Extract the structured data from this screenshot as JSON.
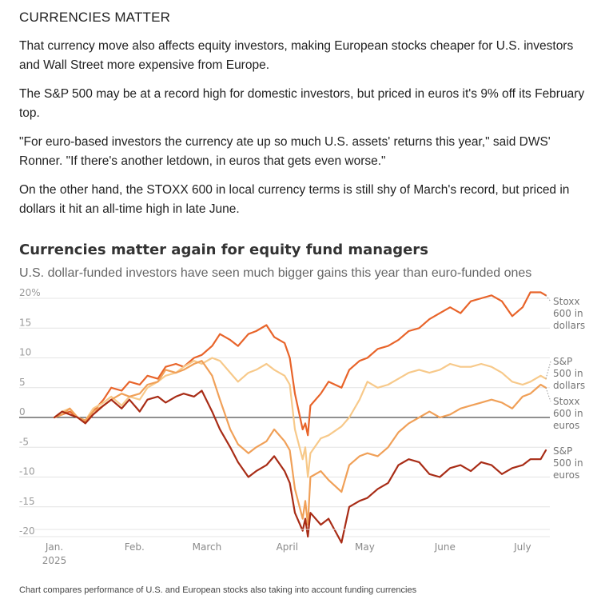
{
  "article": {
    "heading": "CURRENCIES MATTER",
    "paragraphs": [
      "That currency move also affects equity investors, making European stocks cheaper for U.S. investors and Wall Street more expensive from Europe.",
      "The S&P 500 may be at a record high for domestic investors, but priced in euros it's 9% off its February top.",
      "\"For euro-based investors the currency ate up so much U.S. assets' returns this year,\" said DWS' Ronner. \"If there's another letdown, in euros that gets even worse.\"",
      "On the other hand, the STOXX 600 in local currency terms is still shy of March's record, but priced in dollars it hit an all-time high in late June."
    ]
  },
  "chart_data": {
    "type": "line",
    "title": "Currencies matter again for equity fund managers",
    "subtitle": "U.S. dollar-funded investors have seen much bigger gains this year than euro-funded ones",
    "caption": "Chart compares performance of U.S. and European stocks also taking into account funding currencies",
    "ylim": [
      -21,
      21
    ],
    "yticks": [
      20,
      15,
      10,
      5,
      0,
      -5,
      -10,
      -15,
      -20
    ],
    "ytick_labels": [
      "20%",
      "15",
      "10",
      "5",
      "0",
      "-5",
      "-10",
      "-15",
      "-20"
    ],
    "x_range": [
      "2025-01-01",
      "2025-07-10"
    ],
    "xticks": [
      {
        "date": "2025-01-01",
        "label": "Jan.",
        "sublabel": "2025"
      },
      {
        "date": "2025-02-01",
        "label": "Feb.",
        "sublabel": ""
      },
      {
        "date": "2025-03-01",
        "label": "March",
        "sublabel": ""
      },
      {
        "date": "2025-04-01",
        "label": "April",
        "sublabel": ""
      },
      {
        "date": "2025-05-01",
        "label": "May",
        "sublabel": ""
      },
      {
        "date": "2025-06-01",
        "label": "June",
        "sublabel": ""
      },
      {
        "date": "2025-07-01",
        "label": "July",
        "sublabel": ""
      }
    ],
    "grid": true,
    "series": [
      {
        "name": "Stoxx 600 in dollars",
        "label_lines": [
          "Stoxx",
          "600 in",
          "dollars"
        ],
        "color": "#e8642a",
        "points": [
          [
            "2025-01-01",
            0
          ],
          [
            "2025-01-04",
            0.5
          ],
          [
            "2025-01-07",
            1
          ],
          [
            "2025-01-10",
            0
          ],
          [
            "2025-01-13",
            -0.8
          ],
          [
            "2025-01-16",
            1
          ],
          [
            "2025-01-20",
            3
          ],
          [
            "2025-01-23",
            5
          ],
          [
            "2025-01-27",
            4.5
          ],
          [
            "2025-01-30",
            6
          ],
          [
            "2025-02-03",
            5.5
          ],
          [
            "2025-02-06",
            7
          ],
          [
            "2025-02-10",
            6.5
          ],
          [
            "2025-02-13",
            8.5
          ],
          [
            "2025-02-17",
            9
          ],
          [
            "2025-02-20",
            8.5
          ],
          [
            "2025-02-24",
            10
          ],
          [
            "2025-02-27",
            10.5
          ],
          [
            "2025-03-03",
            12
          ],
          [
            "2025-03-06",
            14
          ],
          [
            "2025-03-10",
            13
          ],
          [
            "2025-03-13",
            12
          ],
          [
            "2025-03-17",
            14
          ],
          [
            "2025-03-20",
            14.5
          ],
          [
            "2025-03-24",
            15.5
          ],
          [
            "2025-03-27",
            13.5
          ],
          [
            "2025-03-31",
            12.5
          ],
          [
            "2025-04-02",
            10
          ],
          [
            "2025-04-04",
            4
          ],
          [
            "2025-04-07",
            -2
          ],
          [
            "2025-04-08",
            -1
          ],
          [
            "2025-04-09",
            -3
          ],
          [
            "2025-04-10",
            2
          ],
          [
            "2025-04-14",
            4
          ],
          [
            "2025-04-17",
            6
          ],
          [
            "2025-04-22",
            5
          ],
          [
            "2025-04-25",
            8
          ],
          [
            "2025-04-29",
            9.5
          ],
          [
            "2025-05-02",
            10
          ],
          [
            "2025-05-06",
            11.5
          ],
          [
            "2025-05-10",
            12
          ],
          [
            "2025-05-14",
            13
          ],
          [
            "2025-05-18",
            14.5
          ],
          [
            "2025-05-22",
            15
          ],
          [
            "2025-05-26",
            16.5
          ],
          [
            "2025-05-30",
            17.5
          ],
          [
            "2025-06-03",
            18.5
          ],
          [
            "2025-06-07",
            17.5
          ],
          [
            "2025-06-11",
            19.5
          ],
          [
            "2025-06-15",
            20
          ],
          [
            "2025-06-19",
            20.5
          ],
          [
            "2025-06-23",
            19.5
          ],
          [
            "2025-06-27",
            17
          ],
          [
            "2025-07-01",
            18.5
          ],
          [
            "2025-07-04",
            21
          ],
          [
            "2025-07-08",
            21
          ],
          [
            "2025-07-10",
            20.5
          ]
        ]
      },
      {
        "name": "S&P 500 in dollars",
        "label_lines": [
          "S&P",
          "500 in",
          "dollars"
        ],
        "color": "#f7c98a",
        "points": [
          [
            "2025-01-01",
            0
          ],
          [
            "2025-01-04",
            1
          ],
          [
            "2025-01-07",
            1.5
          ],
          [
            "2025-01-10",
            0
          ],
          [
            "2025-01-13",
            -0.5
          ],
          [
            "2025-01-16",
            1.5
          ],
          [
            "2025-01-20",
            2.5
          ],
          [
            "2025-01-23",
            3.5
          ],
          [
            "2025-01-27",
            2
          ],
          [
            "2025-01-30",
            3.5
          ],
          [
            "2025-02-03",
            3
          ],
          [
            "2025-02-06",
            5
          ],
          [
            "2025-02-10",
            6
          ],
          [
            "2025-02-13",
            7
          ],
          [
            "2025-02-17",
            7.5
          ],
          [
            "2025-02-20",
            8.5
          ],
          [
            "2025-02-24",
            9.5
          ],
          [
            "2025-02-27",
            9
          ],
          [
            "2025-03-03",
            10
          ],
          [
            "2025-03-06",
            9.5
          ],
          [
            "2025-03-10",
            7.5
          ],
          [
            "2025-03-13",
            6
          ],
          [
            "2025-03-17",
            7.5
          ],
          [
            "2025-03-20",
            8
          ],
          [
            "2025-03-24",
            9
          ],
          [
            "2025-03-27",
            8
          ],
          [
            "2025-03-31",
            7
          ],
          [
            "2025-04-02",
            5.5
          ],
          [
            "2025-04-04",
            -2
          ],
          [
            "2025-04-07",
            -7
          ],
          [
            "2025-04-08",
            -5
          ],
          [
            "2025-04-09",
            -10
          ],
          [
            "2025-04-10",
            -6
          ],
          [
            "2025-04-14",
            -3.5
          ],
          [
            "2025-04-17",
            -3
          ],
          [
            "2025-04-22",
            -1.5
          ],
          [
            "2025-04-25",
            0
          ],
          [
            "2025-04-29",
            3
          ],
          [
            "2025-05-02",
            6
          ],
          [
            "2025-05-06",
            5
          ],
          [
            "2025-05-10",
            5.5
          ],
          [
            "2025-05-14",
            6.5
          ],
          [
            "2025-05-18",
            7.5
          ],
          [
            "2025-05-22",
            8
          ],
          [
            "2025-05-26",
            7.5
          ],
          [
            "2025-05-30",
            8
          ],
          [
            "2025-06-03",
            9
          ],
          [
            "2025-06-07",
            8.5
          ],
          [
            "2025-06-11",
            8.5
          ],
          [
            "2025-06-15",
            9
          ],
          [
            "2025-06-19",
            8.5
          ],
          [
            "2025-06-23",
            7.5
          ],
          [
            "2025-06-27",
            6
          ],
          [
            "2025-07-01",
            5.5
          ],
          [
            "2025-07-04",
            6
          ],
          [
            "2025-07-08",
            7
          ],
          [
            "2025-07-10",
            6.5
          ]
        ]
      },
      {
        "name": "Stoxx 600 in euros",
        "label_lines": [
          "Stoxx",
          "600 in",
          "euros"
        ],
        "color": "#f0a058",
        "points": [
          [
            "2025-01-01",
            0
          ],
          [
            "2025-01-04",
            0.5
          ],
          [
            "2025-01-07",
            1.5
          ],
          [
            "2025-01-10",
            0
          ],
          [
            "2025-01-13",
            -0.5
          ],
          [
            "2025-01-16",
            1
          ],
          [
            "2025-01-20",
            2
          ],
          [
            "2025-01-23",
            3
          ],
          [
            "2025-01-27",
            4
          ],
          [
            "2025-01-30",
            3.5
          ],
          [
            "2025-02-03",
            4
          ],
          [
            "2025-02-06",
            5.5
          ],
          [
            "2025-02-10",
            6
          ],
          [
            "2025-02-13",
            8
          ],
          [
            "2025-02-17",
            7.5
          ],
          [
            "2025-02-20",
            8
          ],
          [
            "2025-02-24",
            9
          ],
          [
            "2025-02-27",
            9.5
          ],
          [
            "2025-03-03",
            7
          ],
          [
            "2025-03-06",
            3
          ],
          [
            "2025-03-10",
            -2
          ],
          [
            "2025-03-13",
            -4.5
          ],
          [
            "2025-03-17",
            -6
          ],
          [
            "2025-03-20",
            -5
          ],
          [
            "2025-03-24",
            -4
          ],
          [
            "2025-03-27",
            -2
          ],
          [
            "2025-03-31",
            -4
          ],
          [
            "2025-04-02",
            -5.5
          ],
          [
            "2025-04-04",
            -12
          ],
          [
            "2025-04-07",
            -17
          ],
          [
            "2025-04-08",
            -14
          ],
          [
            "2025-04-09",
            -18
          ],
          [
            "2025-04-10",
            -10
          ],
          [
            "2025-04-14",
            -9
          ],
          [
            "2025-04-17",
            -10.5
          ],
          [
            "2025-04-22",
            -12.5
          ],
          [
            "2025-04-25",
            -8
          ],
          [
            "2025-04-29",
            -6.5
          ],
          [
            "2025-05-02",
            -6
          ],
          [
            "2025-05-06",
            -6.5
          ],
          [
            "2025-05-10",
            -5
          ],
          [
            "2025-05-14",
            -2.5
          ],
          [
            "2025-05-18",
            -1
          ],
          [
            "2025-05-22",
            0
          ],
          [
            "2025-05-26",
            1
          ],
          [
            "2025-05-30",
            0
          ],
          [
            "2025-06-03",
            0.5
          ],
          [
            "2025-06-07",
            1.5
          ],
          [
            "2025-06-11",
            2
          ],
          [
            "2025-06-15",
            2.5
          ],
          [
            "2025-06-19",
            3
          ],
          [
            "2025-06-23",
            2.5
          ],
          [
            "2025-06-27",
            1.5
          ],
          [
            "2025-07-01",
            3.5
          ],
          [
            "2025-07-04",
            4
          ],
          [
            "2025-07-08",
            5.5
          ],
          [
            "2025-07-10",
            5
          ]
        ]
      },
      {
        "name": "S&P 500 in euros",
        "label_lines": [
          "S&P",
          "500 in",
          "euros"
        ],
        "color": "#a82c16",
        "points": [
          [
            "2025-01-01",
            0
          ],
          [
            "2025-01-04",
            1
          ],
          [
            "2025-01-07",
            0.5
          ],
          [
            "2025-01-10",
            0
          ],
          [
            "2025-01-13",
            -1
          ],
          [
            "2025-01-16",
            0.5
          ],
          [
            "2025-01-20",
            2
          ],
          [
            "2025-01-23",
            3
          ],
          [
            "2025-01-27",
            1.5
          ],
          [
            "2025-01-30",
            3
          ],
          [
            "2025-02-03",
            1
          ],
          [
            "2025-02-06",
            3
          ],
          [
            "2025-02-10",
            3.5
          ],
          [
            "2025-02-13",
            2.5
          ],
          [
            "2025-02-17",
            3.5
          ],
          [
            "2025-02-20",
            4
          ],
          [
            "2025-02-24",
            3.5
          ],
          [
            "2025-02-27",
            4.5
          ],
          [
            "2025-03-03",
            1
          ],
          [
            "2025-03-06",
            -2
          ],
          [
            "2025-03-10",
            -5
          ],
          [
            "2025-03-13",
            -7.5
          ],
          [
            "2025-03-17",
            -10
          ],
          [
            "2025-03-20",
            -9
          ],
          [
            "2025-03-24",
            -8
          ],
          [
            "2025-03-27",
            -6.5
          ],
          [
            "2025-03-31",
            -9
          ],
          [
            "2025-04-02",
            -11
          ],
          [
            "2025-04-04",
            -16
          ],
          [
            "2025-04-07",
            -19
          ],
          [
            "2025-04-08",
            -17
          ],
          [
            "2025-04-09",
            -20
          ],
          [
            "2025-04-10",
            -16
          ],
          [
            "2025-04-14",
            -18
          ],
          [
            "2025-04-17",
            -17
          ],
          [
            "2025-04-22",
            -21
          ],
          [
            "2025-04-25",
            -15
          ],
          [
            "2025-04-29",
            -14
          ],
          [
            "2025-05-02",
            -13.5
          ],
          [
            "2025-05-06",
            -12
          ],
          [
            "2025-05-10",
            -11
          ],
          [
            "2025-05-14",
            -8
          ],
          [
            "2025-05-18",
            -7
          ],
          [
            "2025-05-22",
            -7.5
          ],
          [
            "2025-05-26",
            -9.5
          ],
          [
            "2025-05-30",
            -10
          ],
          [
            "2025-06-03",
            -8.5
          ],
          [
            "2025-06-07",
            -8
          ],
          [
            "2025-06-11",
            -9
          ],
          [
            "2025-06-15",
            -7.5
          ],
          [
            "2025-06-19",
            -8
          ],
          [
            "2025-06-23",
            -9.5
          ],
          [
            "2025-06-27",
            -8.5
          ],
          [
            "2025-07-01",
            -8
          ],
          [
            "2025-07-04",
            -7
          ],
          [
            "2025-07-08",
            -7
          ],
          [
            "2025-07-10",
            -5.5
          ]
        ]
      }
    ]
  }
}
